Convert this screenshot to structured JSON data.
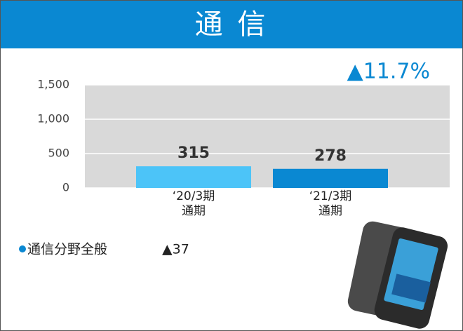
{
  "chart_data": {
    "type": "bar",
    "title": "通 信",
    "annotation": "▲11.7%",
    "categories": [
      "‘20/3期\n通期",
      "‘21/3期\n通期"
    ],
    "values": [
      315,
      278
    ],
    "colors": [
      "#4cc4f8",
      "#0a88d2"
    ],
    "ylim": [
      0,
      1500
    ],
    "yticks": [
      0,
      500,
      {
        "value": 1000,
        "label": "1,000"
      },
      {
        "value": 1500,
        "label": "1,500"
      }
    ],
    "grid": true,
    "note": {
      "label": "通信分野全般",
      "value": "▲37"
    }
  }
}
